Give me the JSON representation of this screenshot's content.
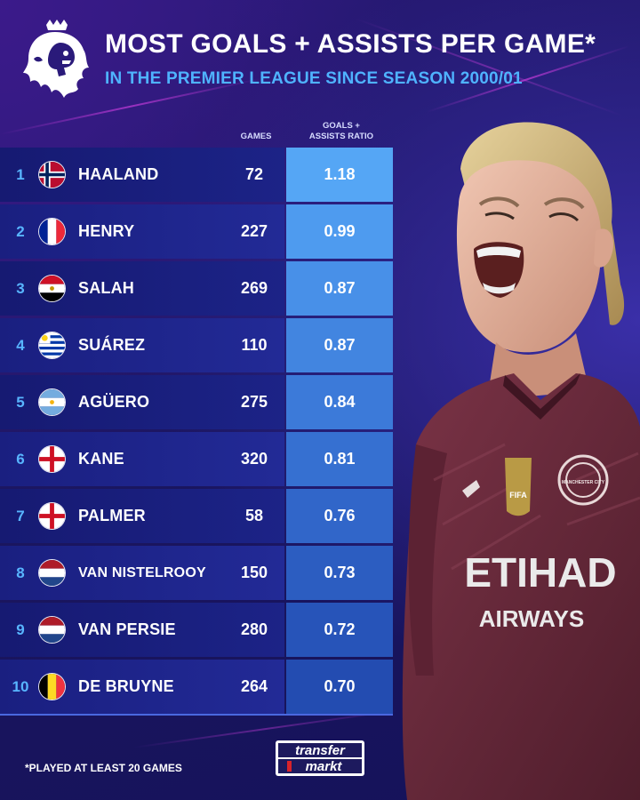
{
  "header": {
    "title": "MOST GOALS + ASSISTS PER GAME*",
    "subtitle": "IN THE PREMIER LEAGUE SINCE SEASON 2000/01"
  },
  "columns": {
    "games": "GAMES",
    "ratio_line1": "GOALS +",
    "ratio_line2": "ASSISTS RATIO"
  },
  "rows": [
    {
      "rank": "1",
      "flag": "norway-flag-icon",
      "name": "HAALAND",
      "games": "72",
      "ratio": "1.18"
    },
    {
      "rank": "2",
      "flag": "france-flag-icon",
      "name": "HENRY",
      "games": "227",
      "ratio": "0.99"
    },
    {
      "rank": "3",
      "flag": "egypt-flag-icon",
      "name": "SALAH",
      "games": "269",
      "ratio": "0.87"
    },
    {
      "rank": "4",
      "flag": "uruguay-flag-icon",
      "name": "SUÁREZ",
      "games": "110",
      "ratio": "0.87"
    },
    {
      "rank": "5",
      "flag": "argentina-flag-icon",
      "name": "AGÜERO",
      "games": "275",
      "ratio": "0.84"
    },
    {
      "rank": "6",
      "flag": "england-flag-icon",
      "name": "KANE",
      "games": "320",
      "ratio": "0.81"
    },
    {
      "rank": "7",
      "flag": "england-flag-icon",
      "name": "PALMER",
      "games": "58",
      "ratio": "0.76"
    },
    {
      "rank": "8",
      "flag": "netherlands-flag-icon",
      "name": "VAN NISTELROOY",
      "games": "150",
      "ratio": "0.73"
    },
    {
      "rank": "9",
      "flag": "netherlands-flag-icon",
      "name": "VAN PERSIE",
      "games": "280",
      "ratio": "0.72"
    },
    {
      "rank": "10",
      "flag": "belgium-flag-icon",
      "name": "DE BRUYNE",
      "games": "264",
      "ratio": "0.70"
    }
  ],
  "ratio_colors": [
    "#55a6f5",
    "#4e9bef",
    "#4890e8",
    "#4285e0",
    "#3c7ad9",
    "#3670d1",
    "#3166c9",
    "#2c5dc1",
    "#2754b9",
    "#234cb1"
  ],
  "footer": {
    "footnote": "*PLAYED AT LEAST 20 GAMES",
    "logo_line1": "transfer",
    "logo_line2": "markt"
  },
  "player_shirt": {
    "sponsor_line1": "ETIHAD",
    "sponsor_line2": "AIRWAYS",
    "crest_text": "MANCHESTER CITY",
    "badge_text": "FIFA"
  },
  "colors": {
    "accent_blue": "#4fb3ff",
    "shirt": "#6b2a3c"
  }
}
